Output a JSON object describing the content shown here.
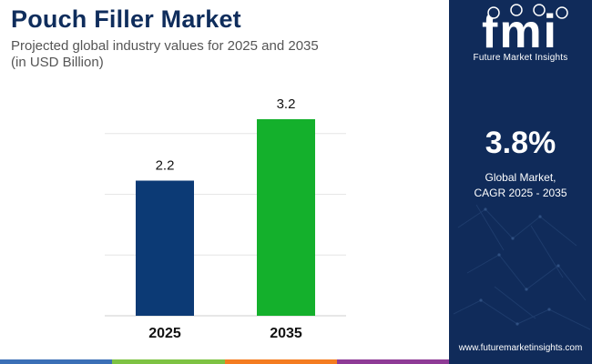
{
  "header": {
    "title": "Pouch Filler Market",
    "subtitle_line1": "Projected global industry values for 2025 and 2035",
    "subtitle_line2": "(in USD Billion)"
  },
  "chart_data": {
    "type": "bar",
    "categories": [
      "2025",
      "2035"
    ],
    "values": [
      2.2,
      3.2
    ],
    "value_labels": [
      "2.2",
      "3.2"
    ],
    "bar_colors": [
      "#0c3a75",
      "#14b02c"
    ],
    "title": "",
    "xlabel": "",
    "ylabel": "",
    "ylim": [
      0,
      3.2
    ],
    "grid": true,
    "legend": "none"
  },
  "sidebar": {
    "logo_text": "fmi",
    "logo_caption": "Future Market Insights",
    "cagr_value": "3.8%",
    "cagr_label_line1": "Global Market,",
    "cagr_label_line2": "CAGR 2025 - 2035",
    "website": "www.futuremarketinsights.com",
    "background_color": "#102b5a"
  },
  "footer_strip_colors": [
    "#3b6fb6",
    "#7dc242",
    "#f47c20",
    "#8e3b96"
  ]
}
